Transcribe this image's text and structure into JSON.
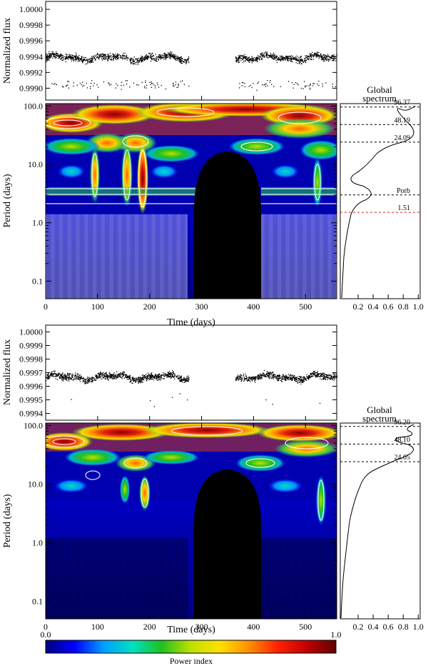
{
  "chart_data": [
    {
      "type": "scatter",
      "ylabel": "Normalized flux",
      "yticks": [
        "1.0000",
        "0.9998",
        "0.9996",
        "0.9994",
        "0.9992",
        "0.9990"
      ],
      "ytick_values": [
        1.0,
        0.9998,
        0.9996,
        0.9994,
        0.9992,
        0.999
      ],
      "ylim": [
        0.99885,
        1.0001
      ],
      "xlim": [
        0,
        560
      ],
      "gap": [
        275,
        365
      ],
      "series": [
        {
          "baseline": 0.99939,
          "scatter": 7e-05,
          "outlier_level": 0.99905
        }
      ]
    },
    {
      "type": "heatmap",
      "xlabel": "Time (days)",
      "ylabel": "Period (days)",
      "xlim": [
        0,
        560
      ],
      "xticks": [
        "0",
        "100",
        "200",
        "300",
        "400",
        "500"
      ],
      "xtick_values": [
        0,
        100,
        200,
        300,
        400,
        500
      ],
      "ylim_log": [
        0.05,
        110
      ],
      "yticks": [
        "100.0",
        "10.0",
        "1.0",
        "0.1"
      ],
      "ytick_values": [
        100,
        10,
        1,
        0.1
      ],
      "cone_of_influence_gap": [
        275,
        365
      ],
      "global_spectrum": {
        "title_line1": "Global",
        "title_line2": "spectrum",
        "xticks": [
          "0.2",
          "0.4",
          "0.6",
          "0.8",
          "1.0"
        ],
        "xtick_values": [
          0.2,
          0.4,
          0.6,
          0.8,
          1.0
        ],
        "peaks": [
          {
            "label": "96.37",
            "period": 96.37,
            "color": "#000000"
          },
          {
            "label": "48.19",
            "period": 48.19,
            "color": "#000000"
          },
          {
            "label": "24.09",
            "period": 24.09,
            "color": "#000000"
          },
          {
            "label": "Porb",
            "period": 3.0,
            "color": "#000000"
          },
          {
            "label": "1.51",
            "period": 1.51,
            "color": "#e02020"
          }
        ]
      }
    },
    {
      "type": "scatter",
      "ylabel": "Normalized flux",
      "yticks": [
        "1.0000",
        "0.9999",
        "0.9998",
        "0.9997",
        "0.9996",
        "0.9995",
        "0.9994"
      ],
      "ytick_values": [
        1.0,
        0.9999,
        0.9998,
        0.9997,
        0.9996,
        0.9995,
        0.9994
      ],
      "ylim": [
        0.99935,
        1.00005
      ],
      "xlim": [
        0,
        560
      ],
      "gap": [
        275,
        365
      ],
      "series": [
        {
          "baseline": 0.99967,
          "scatter": 4e-05
        }
      ]
    },
    {
      "type": "heatmap",
      "xlabel": "Time (days)",
      "ylabel": "Period (days)",
      "xlim": [
        0,
        560
      ],
      "xticks": [
        "0",
        "100",
        "200",
        "300",
        "400",
        "500"
      ],
      "xtick_values": [
        0,
        100,
        200,
        300,
        400,
        500
      ],
      "ylim_log": [
        0.05,
        110
      ],
      "yticks": [
        "100.0",
        "10.0",
        "1.0",
        "0.1"
      ],
      "ytick_values": [
        100,
        10,
        1,
        0.1
      ],
      "cone_of_influence_gap": [
        275,
        365
      ],
      "global_spectrum": {
        "title_line1": "Global",
        "title_line2": "spectrum",
        "xticks": [
          "0.2",
          "0.4",
          "0.6",
          "0.8",
          "1.0"
        ],
        "xtick_values": [
          0.2,
          0.4,
          0.6,
          0.8,
          1.0
        ],
        "peaks": [
          {
            "label": "96.20",
            "period": 96.2,
            "color": "#000000"
          },
          {
            "label": "48.10",
            "period": 48.1,
            "color": "#000000"
          },
          {
            "label": "24.05",
            "period": 24.05,
            "color": "#000000"
          }
        ]
      }
    }
  ],
  "colorbar": {
    "min_label": "0.0",
    "max_label": "1.0",
    "label": "Power index",
    "stops": [
      "#000080",
      "#0000ff",
      "#00a0ff",
      "#00e0c0",
      "#20c020",
      "#c0e000",
      "#ffe000",
      "#ff9000",
      "#ff2000",
      "#c00000",
      "#600000"
    ]
  }
}
